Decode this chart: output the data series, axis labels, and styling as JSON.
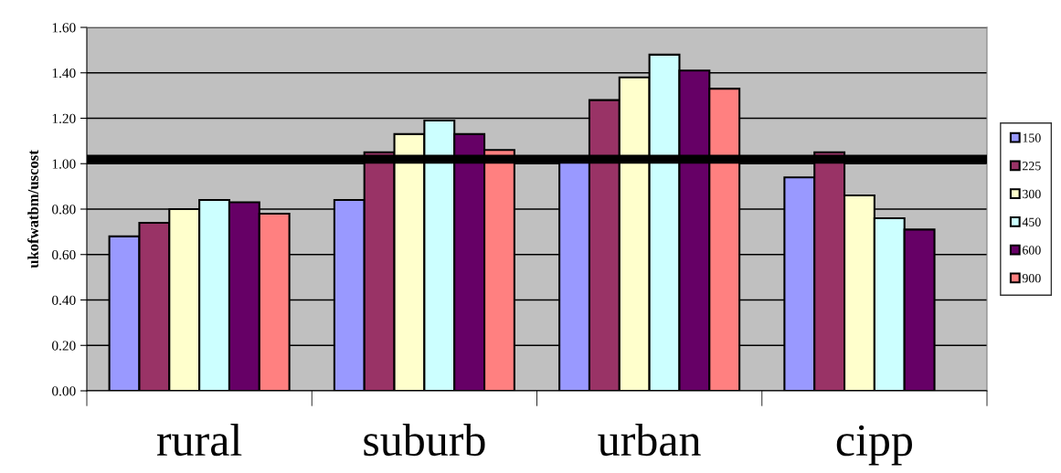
{
  "chart_data": {
    "type": "bar",
    "ylabel": "ukofwatbm/uscost",
    "categories": [
      "rural",
      "suburb",
      "urban",
      "cipp"
    ],
    "series": [
      {
        "name": "150",
        "color": "#9999ff",
        "values": [
          0.68,
          0.84,
          1.01,
          0.94
        ]
      },
      {
        "name": "225",
        "color": "#993366",
        "values": [
          0.74,
          1.05,
          1.28,
          1.05
        ]
      },
      {
        "name": "300",
        "color": "#ffffcc",
        "values": [
          0.8,
          1.13,
          1.38,
          0.86
        ]
      },
      {
        "name": "450",
        "color": "#ccffff",
        "values": [
          0.84,
          1.19,
          1.48,
          0.76
        ]
      },
      {
        "name": "600",
        "color": "#660066",
        "values": [
          0.83,
          1.13,
          1.41,
          0.71
        ]
      },
      {
        "name": "900",
        "color": "#ff8080",
        "values": [
          0.78,
          1.06,
          1.33,
          null
        ]
      }
    ],
    "ylim": [
      0,
      1.6
    ],
    "yticks": [
      {
        "value": 0,
        "label": "0.00"
      },
      {
        "value": 0.2,
        "label": "0.20"
      },
      {
        "value": 0.4,
        "label": "0.40"
      },
      {
        "value": 0.6,
        "label": "0.60"
      },
      {
        "value": 0.8,
        "label": "0.80"
      },
      {
        "value": 1.0,
        "label": "1.00"
      },
      {
        "value": 1.2,
        "label": "1.20"
      },
      {
        "value": 1.4,
        "label": "1.40"
      },
      {
        "value": 1.6,
        "label": "1.60"
      }
    ],
    "ref_lines": [
      {
        "axis": "y",
        "value": 1.02,
        "label": null,
        "color": "#000000"
      }
    ],
    "grid": "y",
    "legend": "right"
  }
}
